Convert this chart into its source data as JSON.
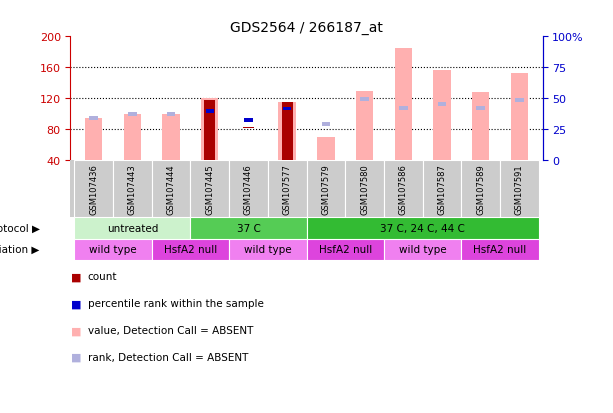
{
  "title": "GDS2564 / 266187_at",
  "samples": [
    "GSM107436",
    "GSM107443",
    "GSM107444",
    "GSM107445",
    "GSM107446",
    "GSM107577",
    "GSM107579",
    "GSM107580",
    "GSM107586",
    "GSM107587",
    "GSM107589",
    "GSM107591"
  ],
  "ylim_left": [
    40,
    200
  ],
  "ylim_right": [
    0,
    100
  ],
  "yticks_left": [
    40,
    80,
    120,
    160,
    200
  ],
  "yticks_right": [
    0,
    25,
    50,
    75,
    100
  ],
  "pink_bar_top": [
    95,
    100,
    100,
    120,
    null,
    115,
    70,
    130,
    185,
    157,
    128,
    153
  ],
  "lightblue_mark": [
    95,
    100,
    100,
    105,
    null,
    110,
    87,
    119,
    108,
    113,
    108,
    118
  ],
  "darkred_bar_bottom": [
    null,
    null,
    null,
    40,
    82,
    40,
    null,
    null,
    null,
    null,
    null,
    null
  ],
  "darkred_bar_top": [
    null,
    null,
    null,
    118,
    83,
    115,
    null,
    null,
    null,
    null,
    null,
    null
  ],
  "darkblue_mark": [
    null,
    null,
    null,
    104,
    92,
    107,
    null,
    null,
    null,
    null,
    null,
    null
  ],
  "protocol_groups": [
    {
      "label": "untreated",
      "start": 0,
      "end": 3,
      "color": "#ccf2cc"
    },
    {
      "label": "37 C",
      "start": 3,
      "end": 6,
      "color": "#55cc55"
    },
    {
      "label": "37 C, 24 C, 44 C",
      "start": 6,
      "end": 12,
      "color": "#33bb33"
    }
  ],
  "genotype_groups": [
    {
      "label": "wild type",
      "start": 0,
      "end": 2,
      "color": "#f080f0"
    },
    {
      "label": "HsfA2 null",
      "start": 2,
      "end": 4,
      "color": "#dd44dd"
    },
    {
      "label": "wild type",
      "start": 4,
      "end": 6,
      "color": "#f080f0"
    },
    {
      "label": "HsfA2 null",
      "start": 6,
      "end": 8,
      "color": "#dd44dd"
    },
    {
      "label": "wild type",
      "start": 8,
      "end": 10,
      "color": "#f080f0"
    },
    {
      "label": "HsfA2 null",
      "start": 10,
      "end": 12,
      "color": "#dd44dd"
    }
  ],
  "pink_color": "#ffb0b0",
  "lightblue_color": "#b0b0dd",
  "darkred_color": "#aa0000",
  "darkblue_color": "#0000cc",
  "left_axis_color": "#cc0000",
  "right_axis_color": "#0000cc",
  "grid_color": "#000000",
  "sample_bg_color": "#cccccc",
  "legend_items": [
    {
      "color": "#aa0000",
      "label": "count"
    },
    {
      "color": "#0000cc",
      "label": "percentile rank within the sample"
    },
    {
      "color": "#ffb0b0",
      "label": "value, Detection Call = ABSENT"
    },
    {
      "color": "#b0b0dd",
      "label": "rank, Detection Call = ABSENT"
    }
  ]
}
